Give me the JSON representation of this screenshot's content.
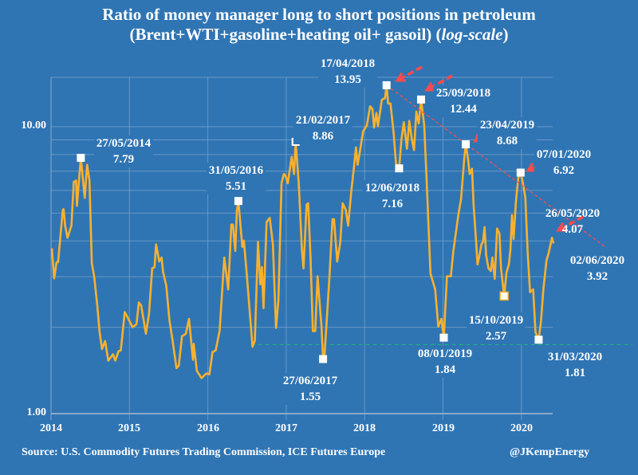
{
  "chart_data": {
    "type": "line",
    "title": "Ratio of money manager long to short positions in petroleum",
    "subtitle_parts": [
      "(Brent+WTI+gasoline+heating oil+ gasoil) (",
      "log-scale",
      ")"
    ],
    "xlabel": "",
    "ylabel": "",
    "x_ticks": [
      "2014",
      "2015",
      "2016",
      "2017",
      "2018",
      "2019",
      "2020"
    ],
    "y_ticks": [
      "1.00",
      "10.00"
    ],
    "y_scale": "log",
    "ylim": [
      1,
      15
    ],
    "xlim": [
      2014,
      2020.4
    ],
    "grid": true,
    "line_color": "#fbb12e",
    "series": [
      {
        "x": [
          2014.01,
          2014.04,
          2014.07,
          2014.09,
          2014.15,
          2014.16,
          2014.18,
          2014.21,
          2014.26,
          2014.29,
          2014.32,
          2014.33,
          2014.38,
          2014.43,
          2014.46,
          2014.49,
          2014.52,
          2014.55,
          2014.59,
          2014.62,
          2014.65,
          2014.69,
          2014.73,
          2014.79,
          2014.82,
          2014.86,
          2014.89,
          2014.94,
          2014.99,
          2015.04,
          2015.09,
          2015.12,
          2015.15,
          2015.21,
          2015.25,
          2015.29,
          2015.32,
          2015.34,
          2015.38,
          2015.41,
          2015.43,
          2015.47,
          2015.51,
          2015.55,
          2015.6,
          2015.63,
          2015.67,
          2015.72,
          2015.76,
          2015.81,
          2015.82,
          2015.86,
          2015.92,
          2015.98,
          2016.02,
          2016.06,
          2016.1,
          2016.15,
          2016.21,
          2016.26,
          2016.3,
          2016.32,
          2016.35,
          2016.37,
          2016.39,
          2016.44,
          2016.46,
          2016.5,
          2016.57,
          2016.6,
          2016.64,
          2016.67,
          2016.69,
          2016.71,
          2016.75,
          2016.79,
          2016.83,
          2016.87,
          2016.9,
          2016.94,
          2016.97,
          2016.99,
          2017.02,
          2017.04,
          2017.07,
          2017.1,
          2017.12,
          2017.16,
          2017.2,
          2017.22,
          2017.26,
          2017.28,
          2017.31,
          2017.34,
          2017.37,
          2017.4,
          2017.45,
          2017.47,
          2017.49,
          2017.55,
          2017.59,
          2017.61,
          2017.65,
          2017.69,
          2017.72,
          2017.76,
          2017.79,
          2017.83,
          2017.86,
          2017.89,
          2017.91,
          2017.94,
          2017.98,
          2018.03,
          2018.07,
          2018.1,
          2018.12,
          2018.15,
          2018.17,
          2018.22,
          2018.26,
          2018.28,
          2018.3,
          2018.33,
          2018.37,
          2018.4,
          2018.44,
          2018.47,
          2018.5,
          2018.54,
          2018.57,
          2018.6,
          2018.63,
          2018.66,
          2018.69,
          2018.72,
          2018.76,
          2018.79,
          2018.84,
          2018.9,
          2018.94,
          2018.98,
          2019.01,
          2019.05,
          2019.1,
          2019.13,
          2019.16,
          2019.2,
          2019.23,
          2019.27,
          2019.29,
          2019.32,
          2019.34,
          2019.37,
          2019.39,
          2019.42,
          2019.44,
          2019.46,
          2019.49,
          2019.51,
          2019.53,
          2019.55,
          2019.58,
          2019.61,
          2019.63,
          2019.66,
          2019.69,
          2019.72,
          2019.74,
          2019.78,
          2019.81,
          2019.84,
          2019.86,
          2019.88,
          2019.9,
          2019.93,
          2019.96,
          2019.99,
          2020.02,
          2020.05,
          2020.08,
          2020.11,
          2020.15,
          2020.18,
          2020.22,
          2020.25,
          2020.28,
          2020.32,
          2020.35,
          2020.39,
          2020.41
        ],
        "values": [
          3.77,
          2.96,
          3.37,
          3.37,
          5.13,
          5.16,
          4.52,
          4.1,
          4.52,
          6.42,
          6.49,
          5.3,
          7.79,
          5.65,
          7.37,
          6.49,
          3.35,
          3.01,
          2.38,
          1.92,
          1.68,
          1.79,
          1.53,
          1.61,
          1.53,
          1.65,
          1.66,
          2.26,
          2.13,
          2.0,
          2.05,
          2.44,
          2.38,
          1.9,
          2.23,
          3.21,
          3.24,
          3.89,
          3.39,
          3.5,
          3.11,
          2.79,
          2.12,
          1.8,
          1.44,
          1.47,
          1.86,
          1.9,
          2.14,
          1.54,
          1.75,
          1.41,
          1.33,
          1.38,
          1.37,
          1.64,
          1.66,
          1.94,
          3.5,
          2.71,
          4.56,
          4.56,
          3.69,
          5.08,
          5.51,
          3.81,
          4.01,
          2.98,
          1.71,
          1.8,
          3.97,
          2.82,
          3.24,
          2.33,
          4.66,
          4.81,
          3.89,
          1.99,
          2.48,
          6.35,
          6.84,
          6.77,
          6.35,
          6.92,
          7.86,
          6.84,
          8.86,
          6.35,
          3.73,
          3.21,
          5.35,
          5.41,
          3.5,
          1.94,
          1.94,
          3.01,
          2.01,
          1.55,
          1.62,
          2.95,
          4.76,
          4.76,
          3.39,
          3.97,
          5.41,
          5.13,
          4.52,
          5.96,
          7.06,
          8.47,
          7.37,
          8.2,
          9.62,
          10.14,
          11.78,
          11.53,
          9.93,
          11.17,
          10.04,
          12.42,
          12.56,
          13.95,
          12.04,
          12.04,
          9.52,
          7.45,
          7.16,
          9.03,
          10.37,
          8.38,
          10.48,
          9.12,
          8.29,
          11.29,
          10.26,
          12.44,
          10.14,
          6.63,
          3.08,
          2.71,
          2.01,
          2.14,
          1.84,
          3.01,
          3.01,
          3.65,
          4.19,
          5.02,
          5.59,
          7.69,
          8.68,
          7.69,
          6.84,
          7.14,
          5.35,
          4.06,
          3.31,
          3.5,
          3.89,
          3.97,
          4.47,
          3.57,
          3.21,
          3.14,
          3.5,
          2.95,
          4.42,
          4.24,
          3.21,
          2.57,
          3.11,
          3.31,
          3.73,
          4.92,
          4.06,
          5.47,
          6.63,
          6.92,
          6.35,
          5.65,
          3.65,
          2.65,
          2.71,
          1.92,
          1.81,
          2.1,
          2.71,
          3.42,
          3.65,
          4.1,
          3.92
        ]
      }
    ],
    "annotations": [
      {
        "date": "27/05/2014",
        "value": "7.79",
        "x": 2014.38,
        "y": 7.79,
        "marker": true
      },
      {
        "date": "31/05/2016",
        "value": "5.51",
        "x": 2016.39,
        "y": 5.51,
        "marker": true
      },
      {
        "date": "21/02/2017",
        "value": "8.86",
        "x": 2017.12,
        "y": 8.86,
        "marker": true
      },
      {
        "date": "17/04/2018",
        "value": "13.95",
        "x": 2018.28,
        "y": 13.95,
        "marker": true
      },
      {
        "date": "12/06/2018",
        "value": "7.16",
        "x": 2018.44,
        "y": 7.16,
        "marker": true
      },
      {
        "date": "25/09/2018",
        "value": "12.44",
        "x": 2018.72,
        "y": 12.44,
        "marker": true
      },
      {
        "date": "23/04/2019",
        "value": "8.68",
        "x": 2019.29,
        "y": 8.68,
        "marker": true
      },
      {
        "date": "07/01/2020",
        "value": "6.92",
        "x": 2019.99,
        "y": 6.92,
        "marker": true
      },
      {
        "date": "26/05/2020",
        "value": "4.07",
        "x": 2020.4,
        "y": 4.07,
        "marker": false
      },
      {
        "date": "02/06/2020",
        "value": "3.92",
        "x": 2020.41,
        "y": 3.92,
        "marker": false
      },
      {
        "date": "08/01/2019",
        "value": "1.84",
        "x": 2019.01,
        "y": 1.84,
        "marker": true
      },
      {
        "date": "27/06/2017",
        "value": "1.55",
        "x": 2017.47,
        "y": 1.55,
        "marker": true
      },
      {
        "date": "15/10/2019",
        "value": "2.57",
        "x": 2019.78,
        "y": 2.57,
        "marker": true
      },
      {
        "date": "31/03/2020",
        "value": "1.81",
        "x": 2020.22,
        "y": 1.81,
        "marker": true
      }
    ],
    "trend_line": {
      "color": "#ff4b4b",
      "from": [
        2018.28,
        13.95
      ],
      "to": [
        2021.06,
        3.83
      ]
    },
    "support_line": {
      "color": "#1fb37a",
      "value": 1.74,
      "from_x": 2016.55
    },
    "arrow_color": "#ff4b4b"
  },
  "footer": {
    "source": "Source: U.S. Commodity Futures Trading Commission, ICE Futures Europe",
    "handle": "@JKempEnergy"
  }
}
